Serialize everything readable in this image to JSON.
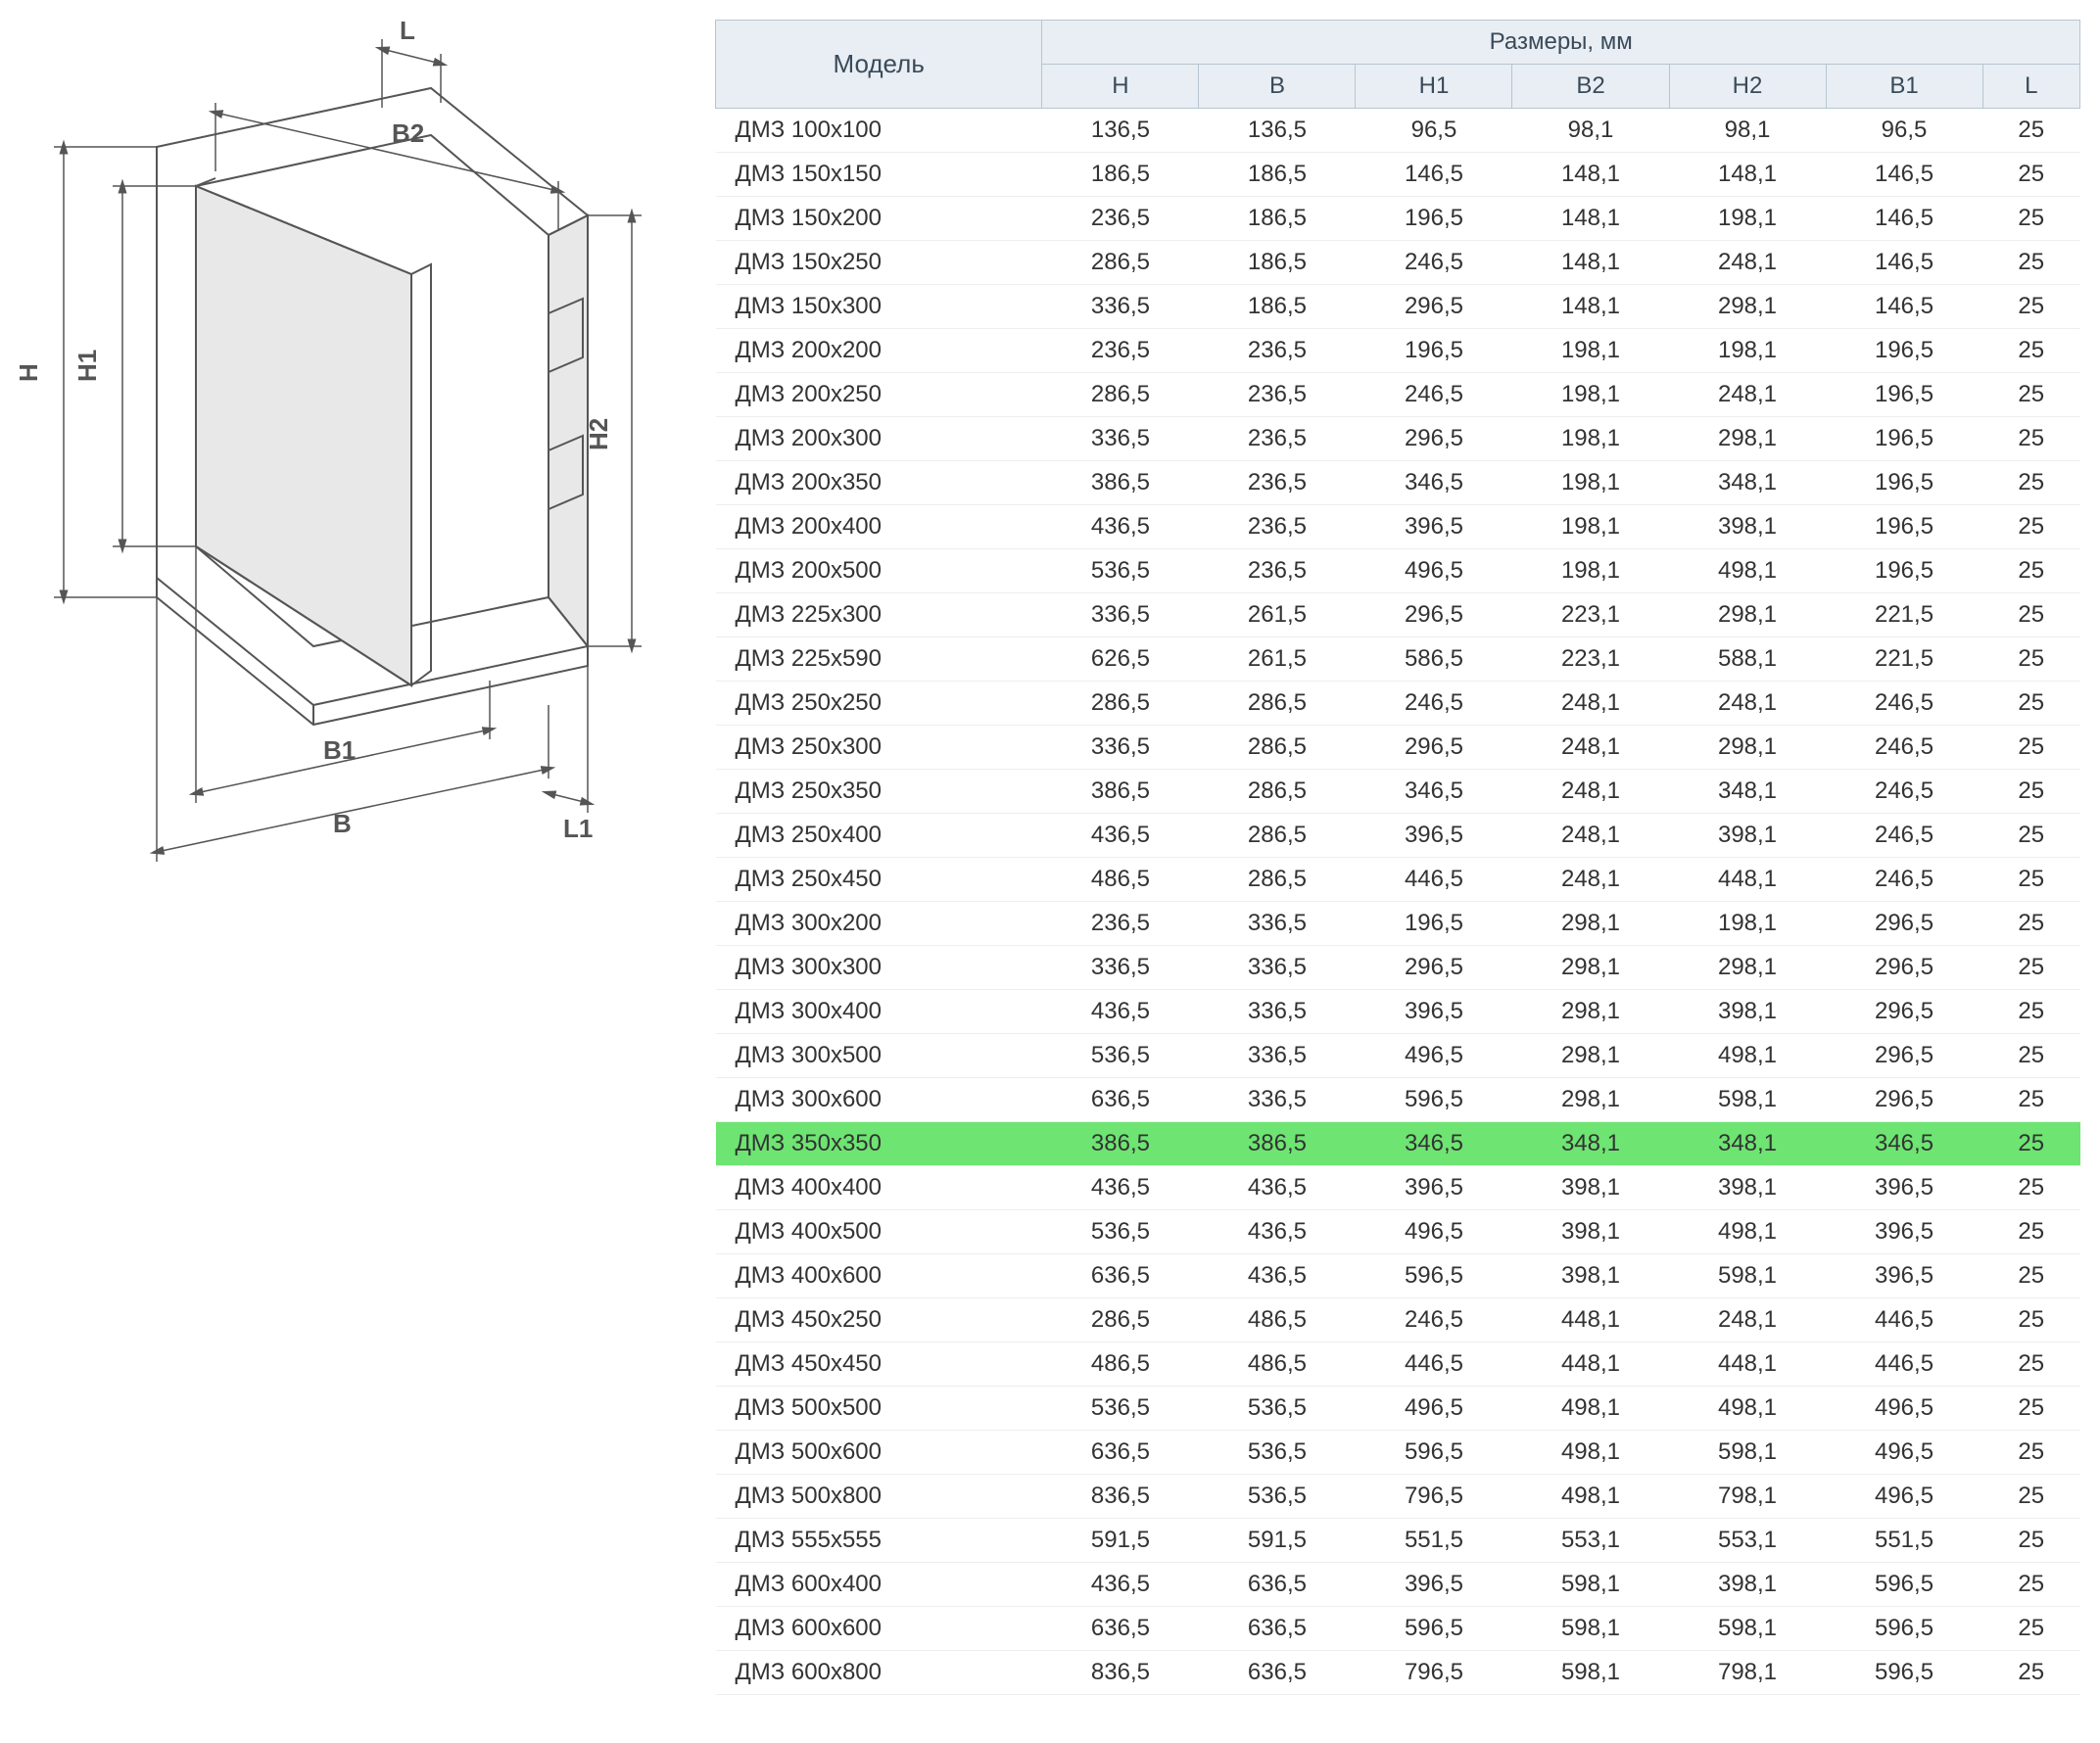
{
  "diagram": {
    "labels": {
      "H": "H",
      "H1": "H1",
      "H2": "H2",
      "B": "B",
      "B1": "B1",
      "B2": "B2",
      "L": "L",
      "L1": "L1"
    },
    "colors": {
      "line": "#555555",
      "fill": "#e8e8e8",
      "arrow": "#555555"
    }
  },
  "table": {
    "header_bg": "#e8eef3",
    "header_border": "#b8c5d0",
    "highlight_bg": "#6ee472",
    "row_border": "#eeeeee",
    "header_model": "Модель",
    "header_dims": "Размеры, мм",
    "columns": [
      "Н",
      "В",
      "Н1",
      "В2",
      "Н2",
      "В1",
      "L"
    ],
    "highlight_index": 23,
    "rows": [
      {
        "model": "ДМЗ 100х100",
        "v": [
          "136,5",
          "136,5",
          "96,5",
          "98,1",
          "98,1",
          "96,5",
          "25"
        ]
      },
      {
        "model": "ДМЗ 150х150",
        "v": [
          "186,5",
          "186,5",
          "146,5",
          "148,1",
          "148,1",
          "146,5",
          "25"
        ]
      },
      {
        "model": "ДМЗ 150х200",
        "v": [
          "236,5",
          "186,5",
          "196,5",
          "148,1",
          "198,1",
          "146,5",
          "25"
        ]
      },
      {
        "model": "ДМЗ 150х250",
        "v": [
          "286,5",
          "186,5",
          "246,5",
          "148,1",
          "248,1",
          "146,5",
          "25"
        ]
      },
      {
        "model": "ДМЗ 150х300",
        "v": [
          "336,5",
          "186,5",
          "296,5",
          "148,1",
          "298,1",
          "146,5",
          "25"
        ]
      },
      {
        "model": "ДМЗ 200х200",
        "v": [
          "236,5",
          "236,5",
          "196,5",
          "198,1",
          "198,1",
          "196,5",
          "25"
        ]
      },
      {
        "model": "ДМЗ 200х250",
        "v": [
          "286,5",
          "236,5",
          "246,5",
          "198,1",
          "248,1",
          "196,5",
          "25"
        ]
      },
      {
        "model": "ДМЗ 200х300",
        "v": [
          "336,5",
          "236,5",
          "296,5",
          "198,1",
          "298,1",
          "196,5",
          "25"
        ]
      },
      {
        "model": "ДМЗ 200х350",
        "v": [
          "386,5",
          "236,5",
          "346,5",
          "198,1",
          "348,1",
          "196,5",
          "25"
        ]
      },
      {
        "model": "ДМЗ 200х400",
        "v": [
          "436,5",
          "236,5",
          "396,5",
          "198,1",
          "398,1",
          "196,5",
          "25"
        ]
      },
      {
        "model": "ДМЗ 200х500",
        "v": [
          "536,5",
          "236,5",
          "496,5",
          "198,1",
          "498,1",
          "196,5",
          "25"
        ]
      },
      {
        "model": "ДМЗ 225х300",
        "v": [
          "336,5",
          "261,5",
          "296,5",
          "223,1",
          "298,1",
          "221,5",
          "25"
        ]
      },
      {
        "model": "ДМЗ 225х590",
        "v": [
          "626,5",
          "261,5",
          "586,5",
          "223,1",
          "588,1",
          "221,5",
          "25"
        ]
      },
      {
        "model": "ДМЗ 250х250",
        "v": [
          "286,5",
          "286,5",
          "246,5",
          "248,1",
          "248,1",
          "246,5",
          "25"
        ]
      },
      {
        "model": "ДМЗ 250х300",
        "v": [
          "336,5",
          "286,5",
          "296,5",
          "248,1",
          "298,1",
          "246,5",
          "25"
        ]
      },
      {
        "model": "ДМЗ 250х350",
        "v": [
          "386,5",
          "286,5",
          "346,5",
          "248,1",
          "348,1",
          "246,5",
          "25"
        ]
      },
      {
        "model": "ДМЗ 250х400",
        "v": [
          "436,5",
          "286,5",
          "396,5",
          "248,1",
          "398,1",
          "246,5",
          "25"
        ]
      },
      {
        "model": "ДМЗ 250х450",
        "v": [
          "486,5",
          "286,5",
          "446,5",
          "248,1",
          "448,1",
          "246,5",
          "25"
        ]
      },
      {
        "model": "ДМЗ 300х200",
        "v": [
          "236,5",
          "336,5",
          "196,5",
          "298,1",
          "198,1",
          "296,5",
          "25"
        ]
      },
      {
        "model": "ДМЗ 300х300",
        "v": [
          "336,5",
          "336,5",
          "296,5",
          "298,1",
          "298,1",
          "296,5",
          "25"
        ]
      },
      {
        "model": "ДМЗ 300х400",
        "v": [
          "436,5",
          "336,5",
          "396,5",
          "298,1",
          "398,1",
          "296,5",
          "25"
        ]
      },
      {
        "model": "ДМЗ 300х500",
        "v": [
          "536,5",
          "336,5",
          "496,5",
          "298,1",
          "498,1",
          "296,5",
          "25"
        ]
      },
      {
        "model": "ДМЗ 300х600",
        "v": [
          "636,5",
          "336,5",
          "596,5",
          "298,1",
          "598,1",
          "296,5",
          "25"
        ]
      },
      {
        "model": "ДМЗ 350х350",
        "v": [
          "386,5",
          "386,5",
          "346,5",
          "348,1",
          "348,1",
          "346,5",
          "25"
        ]
      },
      {
        "model": "ДМЗ 400х400",
        "v": [
          "436,5",
          "436,5",
          "396,5",
          "398,1",
          "398,1",
          "396,5",
          "25"
        ]
      },
      {
        "model": "ДМЗ 400х500",
        "v": [
          "536,5",
          "436,5",
          "496,5",
          "398,1",
          "498,1",
          "396,5",
          "25"
        ]
      },
      {
        "model": "ДМЗ 400х600",
        "v": [
          "636,5",
          "436,5",
          "596,5",
          "398,1",
          "598,1",
          "396,5",
          "25"
        ]
      },
      {
        "model": "ДМЗ 450х250",
        "v": [
          "286,5",
          "486,5",
          "246,5",
          "448,1",
          "248,1",
          "446,5",
          "25"
        ]
      },
      {
        "model": "ДМЗ 450х450",
        "v": [
          "486,5",
          "486,5",
          "446,5",
          "448,1",
          "448,1",
          "446,5",
          "25"
        ]
      },
      {
        "model": "ДМЗ 500х500",
        "v": [
          "536,5",
          "536,5",
          "496,5",
          "498,1",
          "498,1",
          "496,5",
          "25"
        ]
      },
      {
        "model": "ДМЗ 500х600",
        "v": [
          "636,5",
          "536,5",
          "596,5",
          "498,1",
          "598,1",
          "496,5",
          "25"
        ]
      },
      {
        "model": "ДМЗ 500х800",
        "v": [
          "836,5",
          "536,5",
          "796,5",
          "498,1",
          "798,1",
          "496,5",
          "25"
        ]
      },
      {
        "model": "ДМЗ 555х555",
        "v": [
          "591,5",
          "591,5",
          "551,5",
          "553,1",
          "553,1",
          "551,5",
          "25"
        ]
      },
      {
        "model": "ДМЗ 600х400",
        "v": [
          "436,5",
          "636,5",
          "396,5",
          "598,1",
          "398,1",
          "596,5",
          "25"
        ]
      },
      {
        "model": "ДМЗ 600х600",
        "v": [
          "636,5",
          "636,5",
          "596,5",
          "598,1",
          "598,1",
          "596,5",
          "25"
        ]
      },
      {
        "model": "ДМЗ 600х800",
        "v": [
          "836,5",
          "636,5",
          "796,5",
          "598,1",
          "798,1",
          "596,5",
          "25"
        ]
      }
    ]
  }
}
